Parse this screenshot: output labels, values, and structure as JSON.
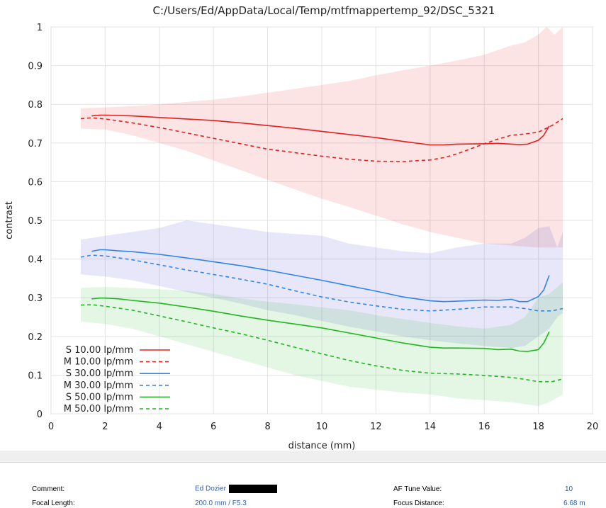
{
  "chart_data": {
    "type": "line",
    "title": "C:/Users/Ed/AppData/Local/Temp/mtfmappertemp_92/DSC_5321",
    "xlabel": "distance (mm)",
    "ylabel": "contrast",
    "xlim": [
      0,
      20
    ],
    "ylim": [
      0,
      1
    ],
    "x_ticks": [
      "0",
      "2",
      "4",
      "6",
      "8",
      "10",
      "12",
      "14",
      "16",
      "18",
      "20"
    ],
    "y_ticks": [
      "0",
      "0.1",
      "0.2",
      "0.3",
      "0.4",
      "0.5",
      "0.6",
      "0.7",
      "0.8",
      "0.9",
      "1"
    ],
    "grid": true,
    "legend_position": "bottom-left",
    "series": [
      {
        "name": "S 10.00 lp/mm",
        "color": "#e32020",
        "dash": "solid",
        "x": [
          1.5,
          1.8,
          2,
          2.5,
          3,
          4,
          5,
          6,
          7,
          8,
          9,
          10,
          11,
          12,
          13,
          14,
          14.5,
          15,
          16,
          16.5,
          17,
          17.3,
          17.6,
          18,
          18.2,
          18.4
        ],
        "y": [
          0.77,
          0.772,
          0.772,
          0.771,
          0.77,
          0.766,
          0.762,
          0.758,
          0.752,
          0.745,
          0.738,
          0.73,
          0.722,
          0.714,
          0.704,
          0.695,
          0.695,
          0.697,
          0.698,
          0.699,
          0.697,
          0.696,
          0.697,
          0.707,
          0.72,
          0.744
        ]
      },
      {
        "name": "M 10.00 lp/mm",
        "color": "#e32020",
        "dash": "dashed",
        "x": [
          1.1,
          1.5,
          2,
          3,
          4,
          5,
          6,
          7,
          8,
          9,
          10,
          11,
          12,
          13,
          14,
          14.5,
          15,
          15.5,
          16,
          16.5,
          17,
          17.5,
          18,
          18.5,
          18.9
        ],
        "y": [
          0.763,
          0.765,
          0.762,
          0.752,
          0.74,
          0.726,
          0.712,
          0.698,
          0.684,
          0.675,
          0.666,
          0.658,
          0.653,
          0.652,
          0.656,
          0.662,
          0.672,
          0.685,
          0.698,
          0.71,
          0.72,
          0.723,
          0.728,
          0.745,
          0.763
        ]
      },
      {
        "name": "S 30.00 lp/mm",
        "color": "#2d86e8",
        "dash": "solid",
        "x": [
          1.5,
          1.8,
          2,
          2.5,
          3,
          4,
          5,
          6,
          7,
          8,
          9,
          10,
          11,
          12,
          13,
          14,
          14.5,
          15,
          16,
          16.5,
          17,
          17.3,
          17.6,
          18,
          18.2,
          18.4
        ],
        "y": [
          0.42,
          0.424,
          0.424,
          0.421,
          0.419,
          0.412,
          0.403,
          0.393,
          0.383,
          0.371,
          0.358,
          0.345,
          0.331,
          0.317,
          0.302,
          0.292,
          0.29,
          0.291,
          0.294,
          0.293,
          0.296,
          0.29,
          0.29,
          0.303,
          0.32,
          0.358
        ]
      },
      {
        "name": "M 30.00 lp/mm",
        "color": "#2d86e8",
        "dash": "dashed",
        "x": [
          1.1,
          1.5,
          2,
          3,
          4,
          5,
          6,
          7,
          8,
          9,
          10,
          11,
          12,
          13,
          14,
          15,
          16,
          17,
          17.5,
          18,
          18.5,
          18.9
        ],
        "y": [
          0.405,
          0.41,
          0.408,
          0.398,
          0.385,
          0.372,
          0.36,
          0.348,
          0.335,
          0.318,
          0.302,
          0.289,
          0.279,
          0.27,
          0.266,
          0.27,
          0.276,
          0.276,
          0.272,
          0.266,
          0.266,
          0.272
        ]
      },
      {
        "name": "S 50.00 lp/mm",
        "color": "#22b722",
        "dash": "solid",
        "x": [
          1.5,
          1.8,
          2,
          2.5,
          3,
          4,
          5,
          6,
          7,
          8,
          9,
          10,
          11,
          12,
          13,
          14,
          14.5,
          15,
          16,
          16.5,
          17,
          17.3,
          17.6,
          18,
          18.2,
          18.4
        ],
        "y": [
          0.297,
          0.299,
          0.299,
          0.297,
          0.293,
          0.286,
          0.276,
          0.265,
          0.253,
          0.242,
          0.232,
          0.222,
          0.209,
          0.196,
          0.183,
          0.172,
          0.17,
          0.17,
          0.169,
          0.166,
          0.167,
          0.162,
          0.161,
          0.166,
          0.183,
          0.212
        ]
      },
      {
        "name": "M 50.00 lp/mm",
        "color": "#22b722",
        "dash": "dashed",
        "x": [
          1.1,
          1.5,
          2,
          3,
          4,
          5,
          6,
          7,
          8,
          9,
          10,
          11,
          12,
          13,
          14,
          15,
          16,
          17,
          17.5,
          18,
          18.5,
          18.9
        ],
        "y": [
          0.281,
          0.282,
          0.278,
          0.268,
          0.253,
          0.238,
          0.222,
          0.207,
          0.19,
          0.172,
          0.155,
          0.138,
          0.124,
          0.112,
          0.105,
          0.103,
          0.099,
          0.094,
          0.089,
          0.083,
          0.083,
          0.09
        ]
      }
    ],
    "bands": [
      {
        "color": "#e32020",
        "x": [
          1.1,
          2,
          3,
          4,
          5,
          6,
          7,
          8,
          9,
          10,
          11,
          12,
          13,
          14,
          15,
          16,
          17,
          17.5,
          18,
          18.3,
          18.6,
          18.9
        ],
        "upper": [
          0.79,
          0.792,
          0.795,
          0.8,
          0.806,
          0.812,
          0.82,
          0.83,
          0.84,
          0.85,
          0.86,
          0.875,
          0.888,
          0.9,
          0.913,
          0.928,
          0.952,
          0.96,
          0.98,
          1.0,
          0.98,
          1.0
        ],
        "lower": [
          0.737,
          0.735,
          0.72,
          0.7,
          0.68,
          0.655,
          0.63,
          0.605,
          0.58,
          0.556,
          0.535,
          0.512,
          0.49,
          0.47,
          0.455,
          0.44,
          0.435,
          0.432,
          0.43,
          0.43,
          0.43,
          0.43
        ]
      },
      {
        "color": "#3a3ad0",
        "x": [
          1.1,
          2,
          3,
          4,
          5,
          6,
          7,
          8,
          9,
          10,
          11,
          12,
          13,
          14,
          15,
          16,
          17,
          17.5,
          18,
          18.4,
          18.7,
          18.9
        ],
        "upper": [
          0.45,
          0.46,
          0.47,
          0.48,
          0.5,
          0.49,
          0.48,
          0.47,
          0.465,
          0.46,
          0.44,
          0.43,
          0.42,
          0.415,
          0.43,
          0.44,
          0.44,
          0.455,
          0.48,
          0.485,
          0.43,
          0.47
        ],
        "lower": [
          0.36,
          0.355,
          0.345,
          0.33,
          0.315,
          0.3,
          0.285,
          0.268,
          0.255,
          0.24,
          0.225,
          0.213,
          0.2,
          0.19,
          0.182,
          0.175,
          0.17,
          0.175,
          0.2,
          0.22,
          0.25,
          0.26
        ]
      },
      {
        "color": "#22b722",
        "x": [
          1.1,
          2,
          3,
          4,
          5,
          6,
          7,
          8,
          9,
          10,
          11,
          12,
          13,
          14,
          15,
          16,
          17,
          17.5,
          18,
          18.4,
          18.9
        ],
        "upper": [
          0.325,
          0.328,
          0.325,
          0.322,
          0.318,
          0.31,
          0.298,
          0.29,
          0.283,
          0.275,
          0.268,
          0.255,
          0.245,
          0.235,
          0.226,
          0.22,
          0.23,
          0.25,
          0.3,
          0.31,
          0.34
        ],
        "lower": [
          0.238,
          0.232,
          0.22,
          0.2,
          0.18,
          0.16,
          0.14,
          0.12,
          0.1,
          0.085,
          0.07,
          0.062,
          0.055,
          0.05,
          0.04,
          0.035,
          0.03,
          0.025,
          0.02,
          0.03,
          0.05
        ]
      }
    ]
  },
  "info": {
    "comment_label": "Comment:",
    "comment_value": "Ed Dozier",
    "focal_label": "Focal Length:",
    "focal_value": "200.0 mm / F5.3",
    "af_label": "AF Tune Value:",
    "af_value": "10",
    "focus_label": "Focus Distance:",
    "focus_value": "6.68 m"
  }
}
